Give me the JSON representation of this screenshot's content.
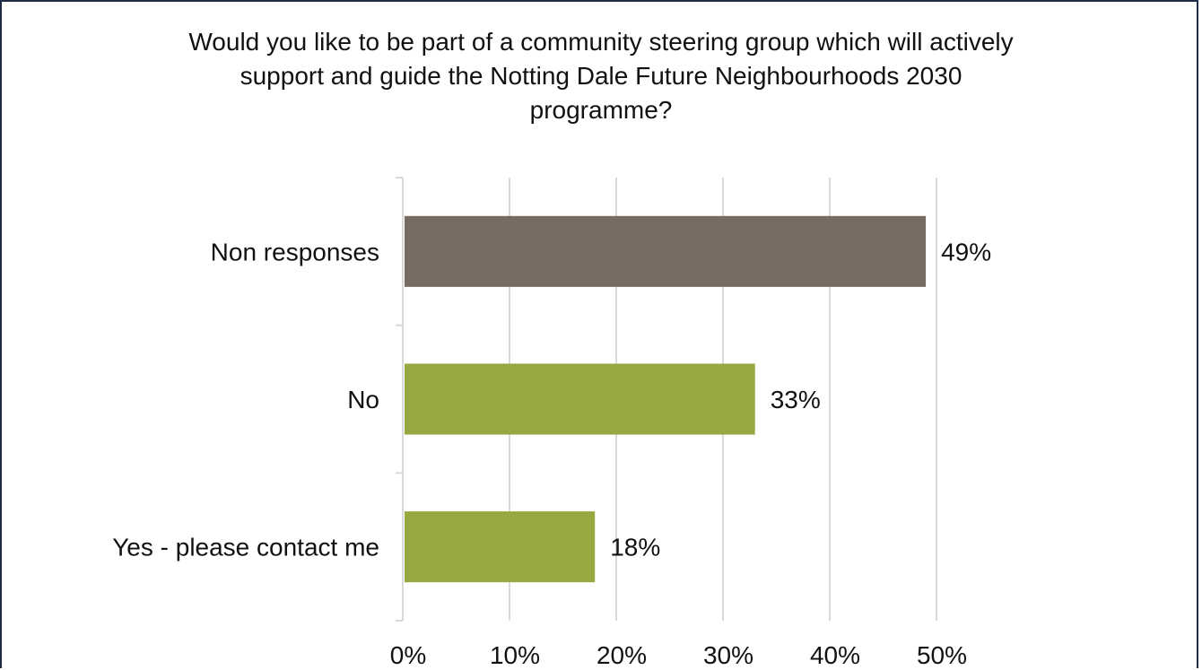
{
  "chart_data": {
    "type": "bar",
    "orientation": "horizontal",
    "title_lines": [
      "Would you like to be part of a community steering group which will actively",
      "support and guide the Notting Dale Future Neighbourhoods 2030",
      "programme?"
    ],
    "categories": [
      "Non responses",
      "No",
      "Yes - please contact me"
    ],
    "values": [
      49,
      33,
      18
    ],
    "data_labels": [
      "49%",
      "33%",
      "18%"
    ],
    "bar_colors": [
      "#786b62",
      "#98a73f",
      "#98a73f"
    ],
    "xlim": [
      0,
      50
    ],
    "x_ticks": [
      0,
      10,
      20,
      30,
      40,
      50
    ],
    "x_tick_labels": [
      "0%",
      "10%",
      "20%",
      "30%",
      "40%",
      "50%"
    ],
    "grid": true,
    "legend": "none"
  }
}
